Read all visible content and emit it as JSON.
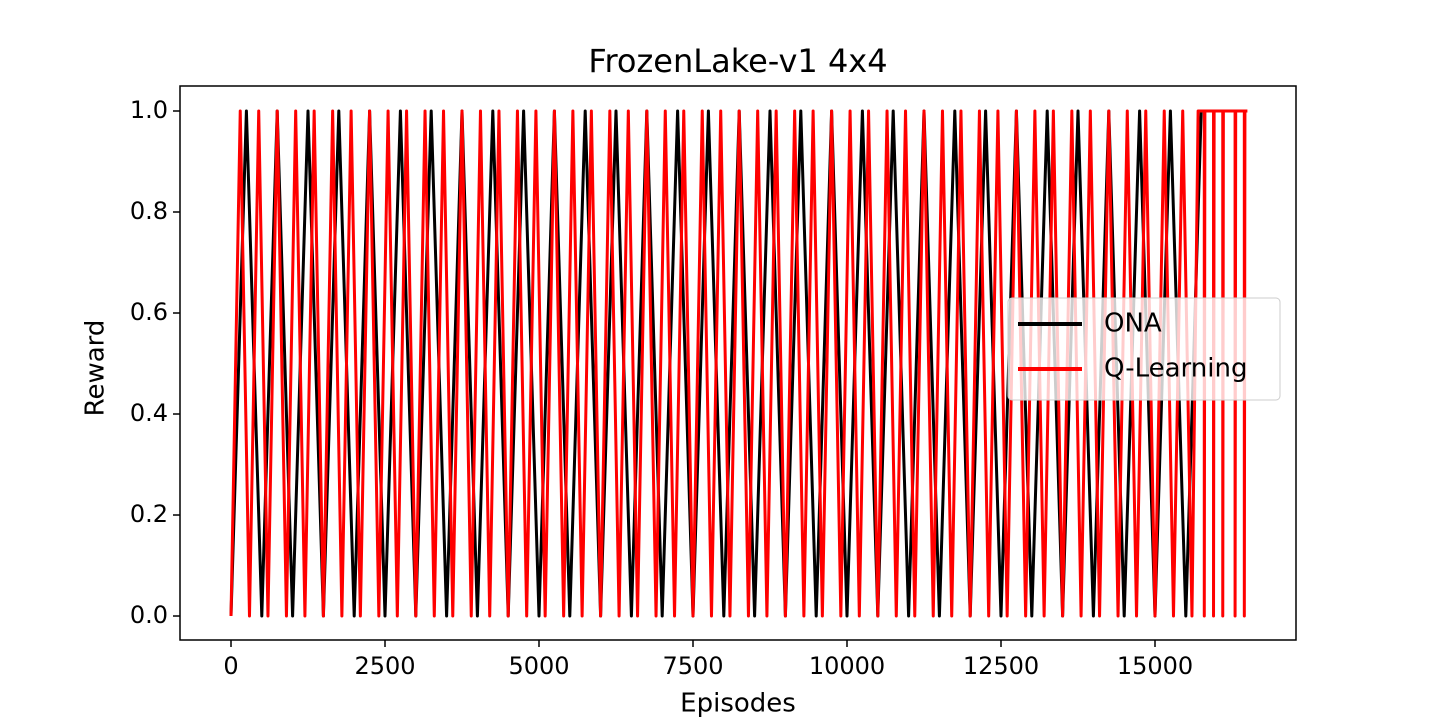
{
  "chart_data": {
    "type": "line",
    "title": "FrozenLake-v1 4x4",
    "x_label": "Episodes",
    "y_label": "Reward",
    "xlim": [
      -828,
      17289
    ],
    "ylim": [
      -0.0475,
      1.0495
    ],
    "xticks": [
      0,
      2500,
      5000,
      7500,
      10000,
      12500,
      15000
    ],
    "yticks": [
      {
        "value": 0,
        "label": "0.0"
      },
      0.2,
      0.4,
      0.6,
      0.8,
      {
        "value": 1,
        "label": "1.0"
      }
    ],
    "legend": "center right",
    "grid": false,
    "series": [
      {
        "name": "ONA",
        "color": "#000000",
        "x": [
          0,
          250,
          500,
          750,
          1000,
          1250,
          1500,
          1750,
          2000,
          2250,
          2500,
          2750,
          3000,
          3250,
          3500,
          3750,
          4000,
          4250,
          4500,
          4750,
          5000,
          5250,
          5500,
          5750,
          6000,
          6250,
          6500,
          6750,
          7000,
          7250,
          7500,
          7750,
          8000,
          8250,
          8500,
          8750,
          9000,
          9250,
          9500,
          9750,
          10000,
          10250,
          10500,
          10750,
          11000,
          11250,
          11500,
          11750,
          12000,
          12250,
          12500,
          12750,
          13000,
          13250,
          13500,
          13750,
          14000,
          14250,
          14500,
          14750,
          15000,
          15250,
          15500,
          15750
        ],
        "values": [
          0,
          1,
          0,
          1,
          0,
          1,
          0,
          1,
          0,
          1,
          0,
          1,
          0,
          1,
          0,
          1,
          0,
          1,
          0,
          1,
          0,
          1,
          0,
          1,
          0,
          1,
          0,
          1,
          0,
          1,
          0,
          1,
          0,
          1,
          0,
          1,
          0,
          1,
          0,
          1,
          0,
          1,
          0,
          1,
          0,
          1,
          0,
          1,
          0,
          1,
          0,
          1,
          0,
          1,
          0,
          1,
          0,
          1,
          0,
          1,
          0,
          1,
          0,
          1
        ]
      },
      {
        "name": "Q-Learning",
        "color": "#ff0000",
        "x": [
          0,
          150,
          300,
          450,
          600,
          750,
          900,
          1050,
          1200,
          1350,
          1500,
          1650,
          1800,
          1950,
          2100,
          2250,
          2400,
          2550,
          2700,
          2850,
          3000,
          3150,
          3300,
          3450,
          3600,
          3750,
          3900,
          4050,
          4200,
          4350,
          4500,
          4650,
          4800,
          4950,
          5100,
          5250,
          5400,
          5550,
          5700,
          5850,
          6000,
          6150,
          6300,
          6450,
          6600,
          6750,
          6900,
          7050,
          7200,
          7350,
          7500,
          7650,
          7800,
          7950,
          8100,
          8250,
          8400,
          8550,
          8700,
          8850,
          9000,
          9150,
          9300,
          9450,
          9600,
          9750,
          9900,
          10050,
          10200,
          10350,
          10500,
          10650,
          10800,
          10950,
          11100,
          11250,
          11400,
          11550,
          11700,
          11850,
          12000,
          12150,
          12300,
          12450,
          12600,
          12750,
          12900,
          13050,
          13200,
          13350,
          13500,
          13650,
          13800,
          13950,
          14100,
          14250,
          14400,
          14550,
          14700,
          14850,
          15000,
          15150,
          15300,
          15450,
          15600,
          15700,
          15800,
          15800,
          15810,
          15950,
          15950,
          15960,
          16100,
          16100,
          16110,
          16300,
          16300,
          16310,
          16450,
          16450,
          16460,
          16500
        ],
        "values": [
          0,
          1,
          0,
          1,
          0,
          1,
          0,
          1,
          0,
          1,
          0,
          1,
          0,
          1,
          0,
          1,
          0,
          1,
          0,
          1,
          0,
          1,
          0,
          1,
          0,
          1,
          0,
          1,
          0,
          1,
          0,
          1,
          0,
          1,
          0,
          1,
          0,
          1,
          0,
          1,
          0,
          1,
          0,
          1,
          0,
          1,
          0,
          1,
          0,
          1,
          0,
          1,
          0,
          1,
          0,
          1,
          0,
          1,
          0,
          1,
          0,
          1,
          0,
          1,
          0,
          1,
          0,
          1,
          0,
          1,
          0,
          1,
          0,
          1,
          0,
          1,
          0,
          1,
          0,
          1,
          0,
          1,
          0,
          1,
          0,
          1,
          0,
          1,
          0,
          1,
          0,
          1,
          0,
          1,
          0,
          1,
          0,
          1,
          0,
          1,
          0,
          1,
          0,
          1,
          0,
          1,
          1,
          0,
          1,
          1,
          0,
          1,
          1,
          0,
          1,
          1,
          0,
          1,
          1,
          0,
          1,
          1
        ]
      }
    ]
  }
}
